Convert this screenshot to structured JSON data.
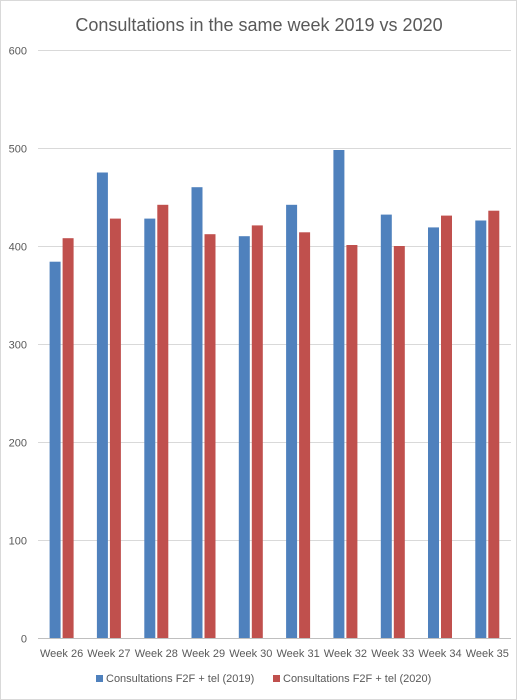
{
  "chart_data": {
    "type": "bar",
    "title": "Consultations in the same week 2019 vs 2020",
    "xlabel": "",
    "ylabel": "",
    "categories": [
      "Week 26",
      "Week 27",
      "Week 28",
      "Week 29",
      "Week 30",
      "Week 31",
      "Week 32",
      "Week 33",
      "Week 34",
      "Week 35"
    ],
    "series": [
      {
        "name": "Consultations F2F + tel (2019)",
        "color": "#4f81bd",
        "values": [
          384,
          475,
          428,
          460,
          410,
          442,
          498,
          432,
          419,
          426
        ]
      },
      {
        "name": "Consultations F2F + tel (2020)",
        "color": "#c0504d",
        "values": [
          408,
          428,
          442,
          412,
          421,
          414,
          401,
          400,
          431,
          436
        ]
      }
    ],
    "ylim": [
      0,
      600
    ],
    "yticks": [
      0,
      100,
      200,
      300,
      400,
      500,
      600
    ],
    "grid": true,
    "legend_position": "bottom"
  }
}
